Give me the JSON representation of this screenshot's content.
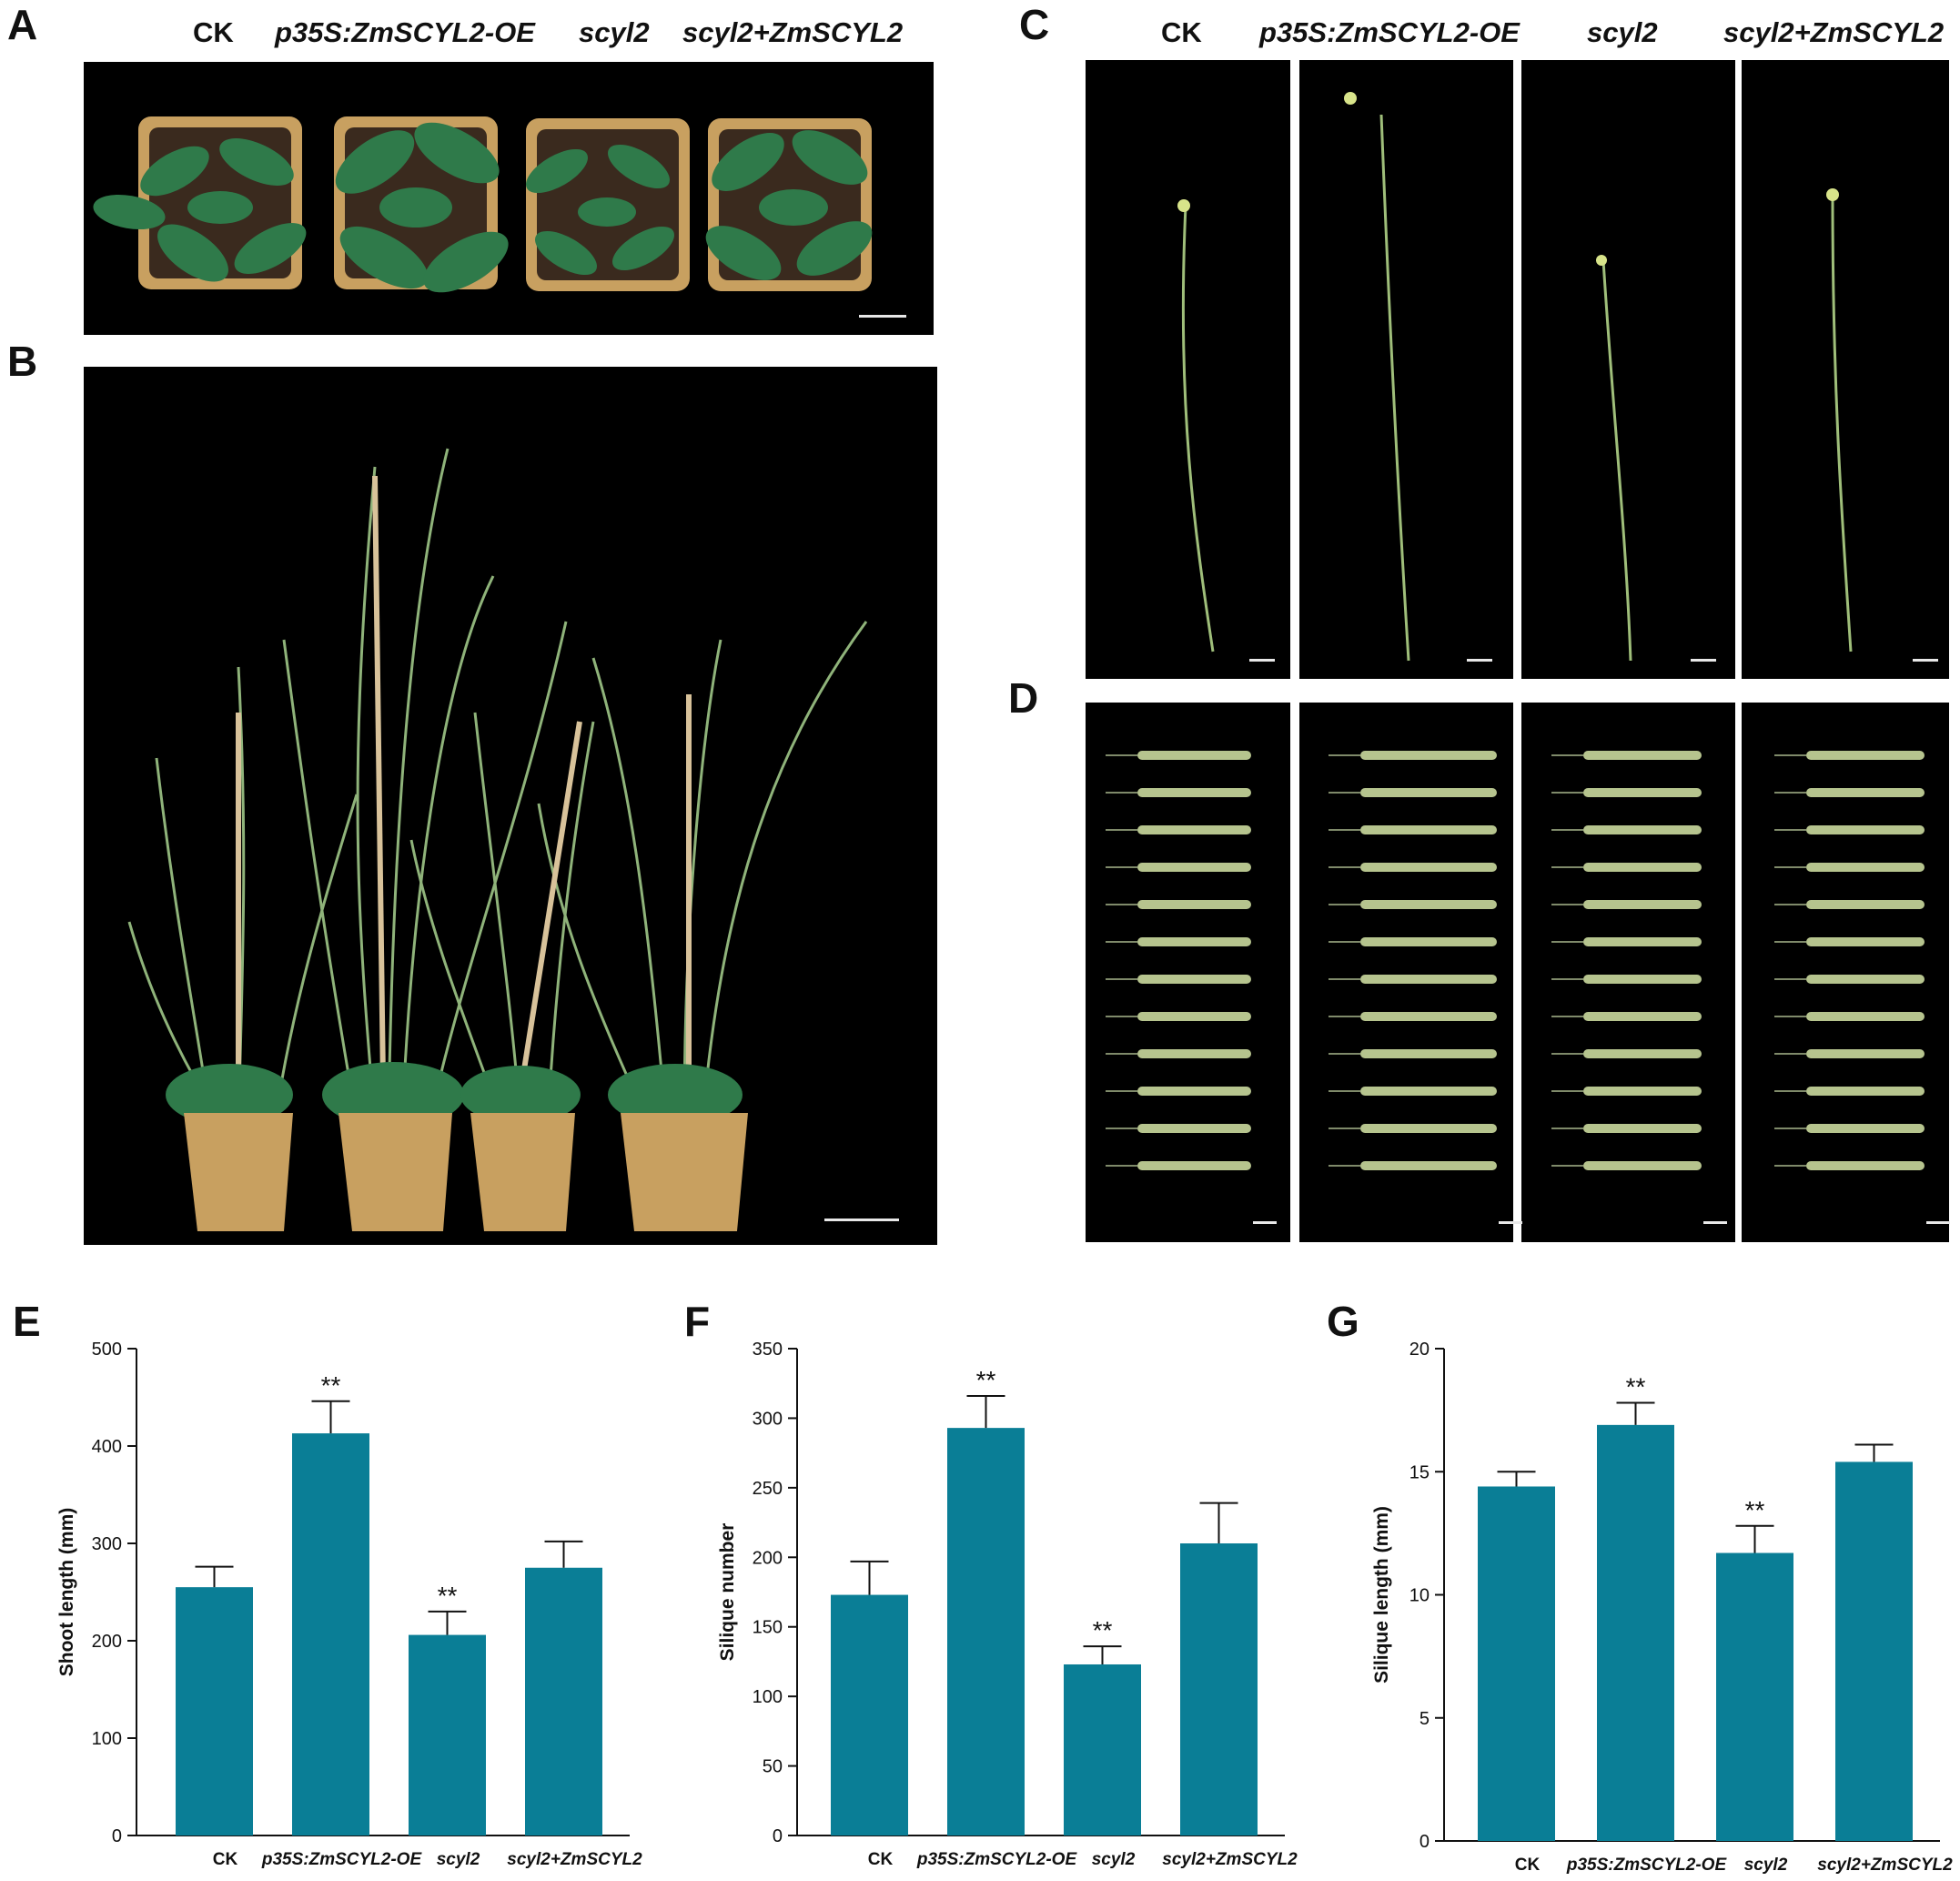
{
  "panels": {
    "A": "A",
    "B": "B",
    "C": "C",
    "D": "D",
    "E": "E",
    "F": "F",
    "G": "G"
  },
  "genotypes": {
    "ck": "CK",
    "oe": "p35S:ZmSCYL2-OE",
    "mut": "scyl2",
    "comp": "scyl2+ZmSCYL2"
  },
  "colors": {
    "bar": "#0a7e96",
    "photo_bg": "#000000",
    "pot": "#c8a060",
    "foliage": "#2f7a4a",
    "stem": "#8fb37a",
    "silique": "#b6c48e"
  },
  "chart_data": [
    {
      "type": "bar",
      "panel": "E",
      "categories": [
        "CK",
        "p35S:ZmSCYL2-OE",
        "scyl2",
        "scyl2+ZmSCYL2"
      ],
      "values": [
        255,
        413,
        206,
        275
      ],
      "errors": [
        21,
        33,
        24,
        27
      ],
      "significance": [
        "",
        "**",
        "**",
        ""
      ],
      "ylabel": "Shoot length (mm)",
      "ylim": [
        0,
        500
      ],
      "yticks": [
        0,
        100,
        200,
        300,
        400,
        500
      ]
    },
    {
      "type": "bar",
      "panel": "F",
      "categories": [
        "CK",
        "p35S:ZmSCYL2-OE",
        "scyl2",
        "scyl2+ZmSCYL2"
      ],
      "values": [
        173,
        293,
        123,
        210
      ],
      "errors": [
        24,
        23,
        13,
        29
      ],
      "significance": [
        "",
        "**",
        "**",
        ""
      ],
      "ylabel": "Silique number",
      "ylim": [
        0,
        350
      ],
      "yticks": [
        0,
        50,
        100,
        150,
        200,
        250,
        300,
        350
      ]
    },
    {
      "type": "bar",
      "panel": "G",
      "categories": [
        "CK",
        "p35S:ZmSCYL2-OE",
        "scyl2",
        "scyl2+ZmSCYL2"
      ],
      "values": [
        14.4,
        16.9,
        11.7,
        15.4
      ],
      "errors": [
        0.6,
        0.9,
        1.1,
        0.7
      ],
      "significance": [
        "",
        "**",
        "**",
        ""
      ],
      "ylabel": "Silique length (mm)",
      "ylim": [
        0,
        20
      ],
      "yticks": [
        0,
        5,
        10,
        15,
        20
      ]
    }
  ]
}
